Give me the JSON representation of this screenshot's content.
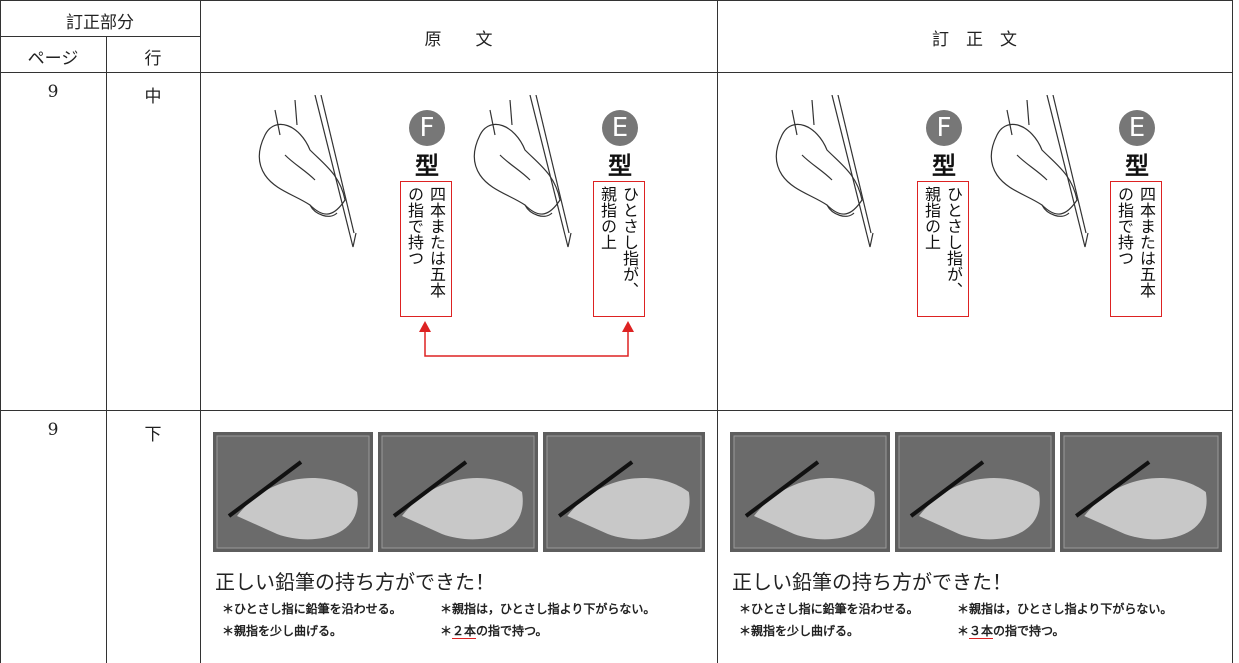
{
  "header": {
    "section": "訂正部分",
    "page": "ページ",
    "line": "行",
    "original": "原　　文",
    "corrected": "訂　正　文"
  },
  "rows": [
    {
      "page": "9",
      "line": "中",
      "original": {
        "grips": [
          {
            "letter": "F",
            "kind": "型",
            "text": "四本または五本の指で持つ"
          },
          {
            "letter": "E",
            "kind": "型",
            "text": "ひとさし指が、親指の上"
          }
        ]
      },
      "corrected": {
        "grips": [
          {
            "letter": "F",
            "kind": "型",
            "text": "ひとさし指が、親指の上"
          },
          {
            "letter": "E",
            "kind": "型",
            "text": "四本または五本の指で持つ"
          }
        ]
      }
    },
    {
      "page": "9",
      "line": "下",
      "original": {
        "caption": "正しい鉛筆の持ち方ができた！",
        "notes": [
          "＊ひとさし指に鉛筆を沿わせる。",
          "＊親指を少し曲げる。",
          "＊親指は，ひとさし指より下がらない。"
        ],
        "last_note": {
          "mark": "＊",
          "underlined": "２本",
          "rest": "の指で持つ。"
        }
      },
      "corrected": {
        "caption": "正しい鉛筆の持ち方ができた！",
        "notes": [
          "＊ひとさし指に鉛筆を沿わせる。",
          "＊親指を少し曲げる。",
          "＊親指は，ひとさし指より下がらない。"
        ],
        "last_note": {
          "mark": "＊",
          "underlined": "３本",
          "rest": "の指で持つ。"
        }
      }
    }
  ]
}
